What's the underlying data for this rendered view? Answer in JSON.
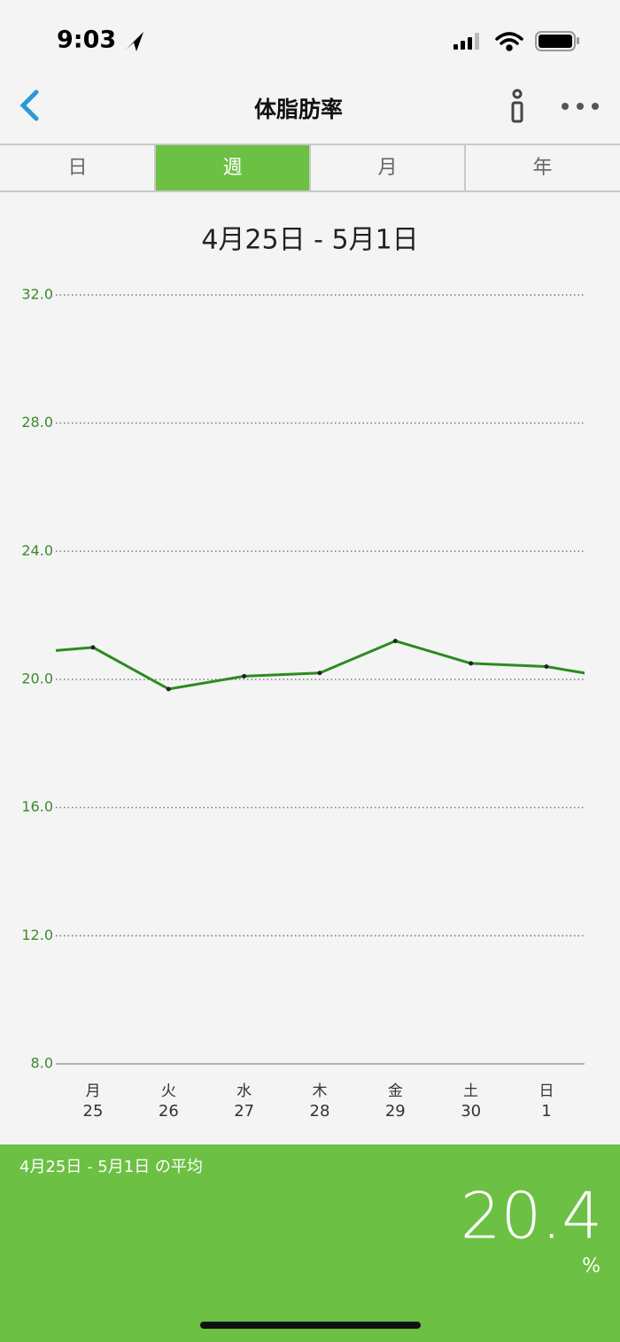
{
  "status_bar": {
    "time": "9:03"
  },
  "nav": {
    "title": "体脂肪率"
  },
  "tabs": {
    "items": [
      "日",
      "週",
      "月",
      "年"
    ],
    "selected": 1
  },
  "chart_data": {
    "type": "line",
    "title": "4月25日 - 5月1日",
    "categories": [
      "月",
      "火",
      "水",
      "木",
      "金",
      "土",
      "日"
    ],
    "category_days": [
      "25",
      "26",
      "27",
      "28",
      "29",
      "30",
      "1"
    ],
    "series": [
      {
        "color": "#2a8c1e",
        "values": [
          21.0,
          19.7,
          20.1,
          20.2,
          21.2,
          20.5,
          20.4
        ]
      }
    ],
    "prev_value": 20.8,
    "next_value": 20.0,
    "ylim": [
      8,
      32
    ],
    "yticks": [
      {
        "value": 8,
        "label": "8.0"
      },
      {
        "value": 12,
        "label": "12.0"
      },
      {
        "value": 16,
        "label": "16.0"
      },
      {
        "value": 20,
        "label": "20.0"
      },
      {
        "value": 24,
        "label": "24.0"
      },
      {
        "value": 28,
        "label": "28.0"
      },
      {
        "value": 32,
        "label": "32.0"
      }
    ],
    "grid": true
  },
  "summary": {
    "label": "4月25日 - 5月1日 の平均",
    "value": "20.4",
    "unit": "%"
  }
}
